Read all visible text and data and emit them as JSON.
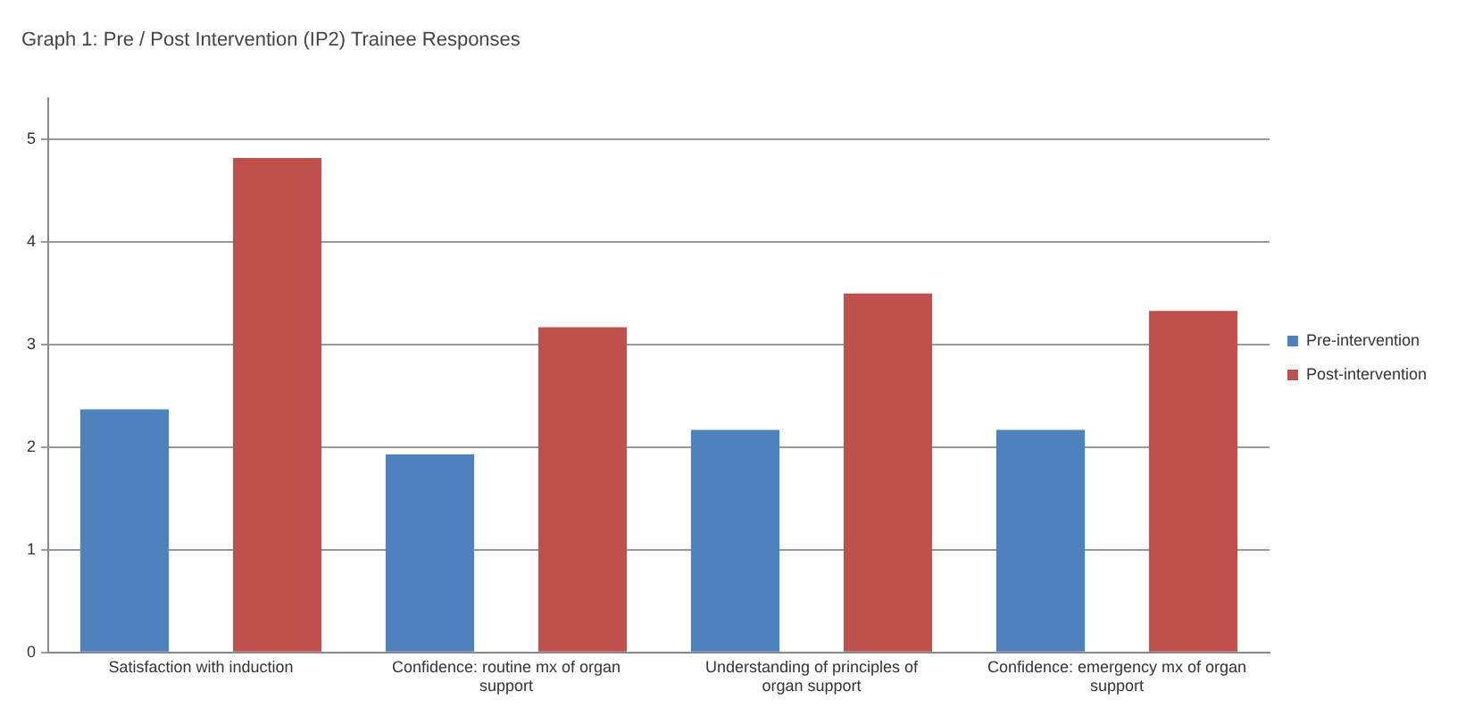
{
  "chart_data": {
    "type": "bar",
    "title": "Graph 1: Pre / Post Intervention (IP2) Trainee Responses",
    "categories": [
      "Satisfaction with induction",
      "Confidence: routine mx of organ support",
      "Understanding of principles of organ support",
      "Confidence: emergency mx of organ support"
    ],
    "series": [
      {
        "name": "Pre-intervention",
        "color": "#4f81bd",
        "values": [
          2.37,
          1.93,
          2.17,
          2.17
        ]
      },
      {
        "name": "Post-intervention",
        "color": "#c0504d",
        "values": [
          4.82,
          3.17,
          3.5,
          3.33
        ]
      }
    ],
    "ylim": [
      0,
      5.4
    ],
    "yticks": [
      0,
      1,
      2,
      3,
      4,
      5
    ],
    "grid": "y",
    "legend": "right"
  }
}
